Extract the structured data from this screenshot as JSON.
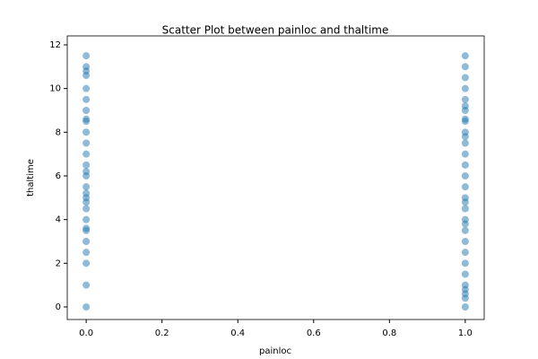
{
  "chart_data": {
    "type": "scatter",
    "title": "Scatter Plot between painloc and thaltime",
    "xlabel": "painloc",
    "ylabel": "thaltime",
    "xlim": [
      -0.05,
      1.05
    ],
    "xticks": [
      {
        "value": 0,
        "label": "0.0"
      },
      0.2,
      0.4,
      0.6,
      0.8,
      {
        "value": 1,
        "label": "1.0"
      }
    ],
    "ylim": [
      -0.575,
      12.41
    ],
    "yticks": [
      0,
      2,
      4,
      6,
      8,
      10,
      12
    ],
    "grid": false,
    "series": [
      {
        "color": "#1f77b4",
        "x": [
          0,
          0,
          0,
          0,
          0,
          0,
          0,
          0,
          0,
          0,
          0,
          0,
          0,
          0,
          0,
          0,
          0,
          0,
          0,
          0,
          0,
          0,
          0,
          0,
          0,
          0,
          0,
          0,
          1,
          1,
          1,
          1,
          1,
          1,
          1,
          1,
          1,
          1,
          1,
          1,
          1,
          1,
          1,
          1,
          1,
          1,
          1,
          1,
          1,
          1,
          1,
          1,
          1,
          1,
          1,
          1,
          1,
          1,
          1
        ],
        "values": [
          0,
          1,
          2,
          2.5,
          3,
          3.5,
          3.6,
          4,
          4.5,
          4.8,
          5,
          5.2,
          5.5,
          6,
          6.2,
          6.5,
          7,
          7.5,
          8,
          8.5,
          8.6,
          9,
          9.5,
          10,
          10.6,
          10.8,
          11,
          11.5,
          0,
          0.4,
          0.6,
          0.8,
          1,
          1.5,
          2,
          2.5,
          3,
          3.5,
          3.8,
          4,
          4.5,
          4.8,
          5,
          5.5,
          6,
          6.5,
          7,
          7.5,
          7.8,
          8,
          8.5,
          8.6,
          9,
          9.2,
          9.5,
          10,
          10.5,
          11,
          11.5
        ]
      }
    ]
  }
}
